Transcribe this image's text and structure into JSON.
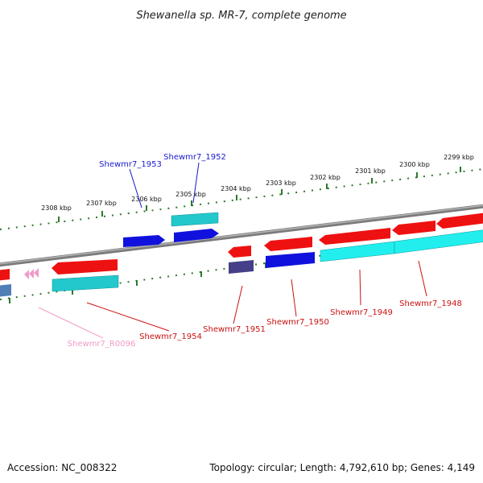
{
  "title": "Shewanella sp. MR-7, complete genome",
  "footer": {
    "accession": "Accession: NC_008322",
    "topology": "Topology: circular; Length: 4,792,610 bp; Genes: 4,149"
  },
  "scale_labels": [
    "2308 kbp",
    "2307 kbp",
    "2306 kbp",
    "2305 kbp",
    "2304 kbp",
    "2303 kbp",
    "2302 kbp",
    "2301 kbp",
    "2300 kbp",
    "2299 kbp"
  ],
  "gene_labels": [
    "Shewmr7_1953",
    "Shewmr7_1952",
    "Shewmr7_1954",
    "Shewmr7_R0096",
    "Shewmr7_1951",
    "Shewmr7_1950",
    "Shewmr7_1949",
    "Shewmr7_1948"
  ],
  "colors": {
    "red": "#ee1111",
    "cyan": "#22c8cc",
    "blue": "#1111dd",
    "navy": "#443f88",
    "steel": "#4f7fb5",
    "pink": "#f29ac8",
    "tick": "#2a7a2a",
    "backbone": "#8a8a8a",
    "label_blue": "#1a1acc",
    "label_red": "#cc1111",
    "label_pink": "#f09ac4"
  }
}
